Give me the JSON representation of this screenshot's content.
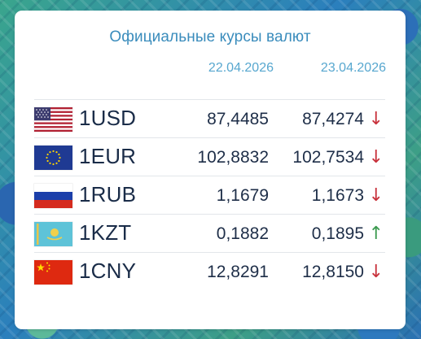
{
  "widget": {
    "title": "Официальные курсы валют",
    "date_previous": "22.04.2026",
    "date_current": "23.04.2026"
  },
  "rates": [
    {
      "code": "1USD",
      "previous": "87,4485",
      "current": "87,4274",
      "trend": "↓",
      "trend_color": "#c8323c",
      "flag_icon": "flag-usa-icon"
    },
    {
      "code": "1EUR",
      "previous": "102,8832",
      "current": "102,7534",
      "trend": "↓",
      "trend_color": "#c8323c",
      "flag_icon": "flag-eu-icon"
    },
    {
      "code": "1RUB",
      "previous": "1,1679",
      "current": "1,1673",
      "trend": "↓",
      "trend_color": "#c8323c",
      "flag_icon": "flag-russia-icon"
    },
    {
      "code": "1KZT",
      "previous": "0,1882",
      "current": "0,1895",
      "trend": "↑",
      "trend_color": "#3b9a4f",
      "flag_icon": "flag-kazakhstan-icon"
    },
    {
      "code": "1CNY",
      "previous": "12,8291",
      "current": "12,8150",
      "trend": "↓",
      "trend_color": "#c8323c",
      "flag_icon": "flag-china-icon"
    }
  ],
  "colors": {
    "title": "#3a8cbc",
    "text": "#1e2e48",
    "down": "#c8323c",
    "up": "#3b9a4f"
  }
}
